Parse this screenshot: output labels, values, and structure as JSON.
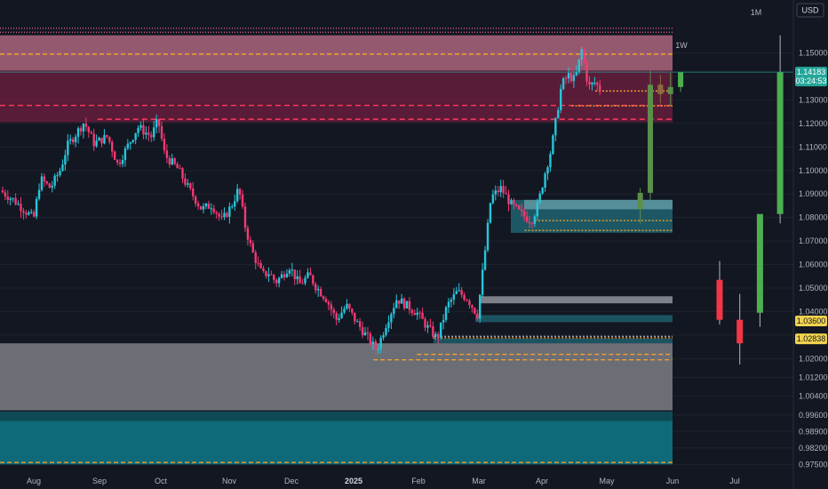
{
  "currency_label": "USD",
  "current_price": {
    "value": "1.14183",
    "countdown": "03:24:53",
    "color": "#26a69a"
  },
  "price_badges": [
    {
      "value": "1.03600",
      "price": 1.036,
      "color": "#f0d24e",
      "text_color": "#131722"
    },
    {
      "value": "1.02838",
      "price": 1.02838,
      "color": "#f0d24e",
      "text_color": "#131722"
    }
  ],
  "timeframe_labels": [
    {
      "label": "1W"
    },
    {
      "label": "1M"
    }
  ],
  "chart_data": {
    "type": "candlestick",
    "instrument": "EURUSD",
    "price_range": [
      0.972,
      1.162
    ],
    "y_ticks": [
      "1.15000",
      "1.14000",
      "1.13000",
      "1.12000",
      "1.11000",
      "1.10000",
      "1.09000",
      "1.08000",
      "1.07000",
      "1.06000",
      "1.05000",
      "1.04000",
      "1.03000",
      "1.02000",
      "1.01200",
      "1.00400",
      "0.99600",
      "0.98900",
      "0.98200",
      "0.97500"
    ],
    "y_tick_values": [
      1.15,
      1.14,
      1.13,
      1.12,
      1.11,
      1.1,
      1.09,
      1.08,
      1.07,
      1.06,
      1.05,
      1.04,
      1.03,
      1.02,
      1.012,
      1.004,
      0.996,
      0.989,
      0.982,
      0.975
    ],
    "x_ticks": [
      {
        "label": "Aug",
        "bold": false
      },
      {
        "label": "Sep",
        "bold": false
      },
      {
        "label": "Oct",
        "bold": false
      },
      {
        "label": "Nov",
        "bold": false
      },
      {
        "label": "Dec",
        "bold": false
      },
      {
        "label": "2025",
        "bold": true
      },
      {
        "label": "Feb",
        "bold": false
      },
      {
        "label": "Mar",
        "bold": false
      },
      {
        "label": "Apr",
        "bold": false
      },
      {
        "label": "May",
        "bold": false
      },
      {
        "label": "Jun",
        "bold": false
      },
      {
        "label": "Jul",
        "bold": false
      }
    ],
    "zones": [
      {
        "name": "supply-zone-upper",
        "low": 1.1425,
        "high": 1.1575,
        "color": "#c2708a",
        "opacity": 0.75
      },
      {
        "name": "supply-zone-lower",
        "low": 1.1205,
        "high": 1.1425,
        "color": "#801f45",
        "opacity": 0.65
      },
      {
        "name": "demand-zone-apr",
        "low": 1.0735,
        "high": 1.0875,
        "color": "#1f5e6b",
        "opacity": 0.9
      },
      {
        "name": "grey-zone-mar",
        "low": 1.0435,
        "high": 1.0465,
        "color": "#8a8c94",
        "opacity": 0.9
      },
      {
        "name": "demand-zone-mar",
        "low": 1.0355,
        "high": 1.0385,
        "color": "#1b5764",
        "opacity": 0.95
      },
      {
        "name": "demand-zone-feb",
        "low": 1.0265,
        "high": 1.0285,
        "color": "#1b5764",
        "opacity": 0.95
      },
      {
        "name": "grey-zone-jan",
        "low": 0.998,
        "high": 1.0265,
        "color": "#6c6e76",
        "opacity": 1
      },
      {
        "name": "teal-zone-bottom-dark",
        "low": 0.9935,
        "high": 0.9975,
        "color": "#0e4a55",
        "opacity": 1
      },
      {
        "name": "teal-zone-bottom",
        "low": 0.975,
        "high": 0.9935,
        "color": "#0e6a79",
        "opacity": 1
      }
    ],
    "levels": [
      {
        "price": 1.1605,
        "color": "#e8567a",
        "dash": "1,2",
        "x_from": 0,
        "x_to": 1
      },
      {
        "price": 1.1588,
        "color": "#e8567a",
        "dash": "1,2",
        "x_from": 0,
        "x_to": 1
      },
      {
        "price": 1.1495,
        "color": "#f0a030",
        "dash": "5,3",
        "x_from": 0,
        "x_to": 1
      },
      {
        "price": 1.1277,
        "color": "#ff3b5c",
        "dash": "6,4",
        "x_from": 0,
        "x_to": 1
      },
      {
        "price": 1.1218,
        "color": "#ff3b5c",
        "dash": "6,4",
        "x_from": 0.145,
        "x_to": 1
      },
      {
        "price": 1.1338,
        "color": "#f0a030",
        "dash": "2,2",
        "x_from": 0.885,
        "x_to": 1
      },
      {
        "price": 1.1275,
        "color": "#f0a030",
        "dash": "2,2",
        "x_from": 0.85,
        "x_to": 1
      },
      {
        "price": 1.0787,
        "color": "#f0a030",
        "dash": "2,2",
        "x_from": 0.795,
        "x_to": 1
      },
      {
        "price": 1.0745,
        "color": "#f0a030",
        "dash": "2,2",
        "x_from": 0.78,
        "x_to": 1
      },
      {
        "price": 1.0288,
        "color": "#f0a030",
        "dash": "2,2",
        "x_from": 0.645,
        "x_to": 1
      },
      {
        "price": 1.0218,
        "color": "#f0a030",
        "dash": "5,3",
        "x_from": 0.62,
        "x_to": 1
      },
      {
        "price": 1.0195,
        "color": "#f0a030",
        "dash": "5,3",
        "x_from": 0.555,
        "x_to": 1
      },
      {
        "price": 0.9758,
        "color": "#f0a030",
        "dash": "5,3",
        "x_from": 0,
        "x_to": 1
      }
    ],
    "daily_path": [
      [
        0,
        1.0915
      ],
      [
        0.02,
        1.0875
      ],
      [
        0.035,
        1.0835
      ],
      [
        0.05,
        1.0795
      ],
      [
        0.06,
        1.0965
      ],
      [
        0.075,
        1.0925
      ],
      [
        0.09,
        1.1005
      ],
      [
        0.1,
        1.1105
      ],
      [
        0.115,
        1.1165
      ],
      [
        0.125,
        1.1205
      ],
      [
        0.14,
        1.1115
      ],
      [
        0.16,
        1.1145
      ],
      [
        0.175,
        1.1025
      ],
      [
        0.19,
        1.1105
      ],
      [
        0.205,
        1.1185
      ],
      [
        0.225,
        1.1145
      ],
      [
        0.235,
        1.1215
      ],
      [
        0.245,
        1.1065
      ],
      [
        0.265,
        1.1005
      ],
      [
        0.28,
        1.0925
      ],
      [
        0.3,
        1.0835
      ],
      [
        0.315,
        1.0855
      ],
      [
        0.33,
        1.0785
      ],
      [
        0.345,
        1.0855
      ],
      [
        0.355,
        1.0925
      ],
      [
        0.365,
        1.0755
      ],
      [
        0.375,
        1.0655
      ],
      [
        0.39,
        1.0555
      ],
      [
        0.4,
        1.0565
      ],
      [
        0.41,
        1.0525
      ],
      [
        0.42,
        1.0555
      ],
      [
        0.43,
        1.0595
      ],
      [
        0.445,
        1.0515
      ],
      [
        0.46,
        1.0555
      ],
      [
        0.47,
        1.0505
      ],
      [
        0.485,
        1.0455
      ],
      [
        0.5,
        1.0365
      ],
      [
        0.515,
        1.0425
      ],
      [
        0.53,
        1.0355
      ],
      [
        0.545,
        1.0295
      ],
      [
        0.56,
        1.0235
      ],
      [
        0.575,
        1.0355
      ],
      [
        0.59,
        1.0455
      ],
      [
        0.605,
        1.0425
      ],
      [
        0.62,
        1.0395
      ],
      [
        0.635,
        1.0335
      ],
      [
        0.65,
        1.0285
      ],
      [
        0.665,
        1.0425
      ],
      [
        0.68,
        1.0485
      ],
      [
        0.695,
        1.0455
      ],
      [
        0.71,
        1.0385
      ],
      [
        0.72,
        1.0625
      ],
      [
        0.73,
        1.0885
      ],
      [
        0.745,
        1.0925
      ],
      [
        0.76,
        1.0855
      ],
      [
        0.775,
        1.0815
      ],
      [
        0.79,
        1.0785
      ],
      [
        0.8,
        1.0855
      ],
      [
        0.81,
        1.0985
      ],
      [
        0.82,
        1.1095
      ],
      [
        0.835,
        1.1365
      ],
      [
        0.845,
        1.1405
      ],
      [
        0.855,
        1.1385
      ],
      [
        0.865,
        1.1515
      ],
      [
        0.875,
        1.1355
      ],
      [
        0.885,
        1.1375
      ],
      [
        0.892,
        1.1345
      ]
    ],
    "weekly_candles": [
      {
        "t": 0.952,
        "open": 1.0835,
        "high": 1.0925,
        "low": 1.0775,
        "close": 1.0905
      },
      {
        "t": 0.967,
        "open": 1.0905,
        "high": 1.1425,
        "low": 1.0875,
        "close": 1.1365
      },
      {
        "t": 0.982,
        "open": 1.1365,
        "high": 1.1405,
        "low": 1.1285,
        "close": 1.1325
      },
      {
        "t": 0.997,
        "open": 1.1325,
        "high": 1.1415,
        "low": 1.1275,
        "close": 1.1355
      },
      {
        "t": 1.012,
        "open": 1.1355,
        "high": 1.1395,
        "low": 1.1335,
        "close": 1.1418
      }
    ],
    "monthly_candles": [
      {
        "t": 1.07,
        "open": 1.0535,
        "high": 1.0615,
        "low": 1.0345,
        "close": 1.0365
      },
      {
        "t": 1.1,
        "open": 1.0365,
        "high": 1.0475,
        "low": 1.0175,
        "close": 1.0265
      },
      {
        "t": 1.13,
        "open": 1.0395,
        "high": 1.0795,
        "low": 1.0335,
        "close": 1.0815
      },
      {
        "t": 1.16,
        "open": 1.0815,
        "high": 1.1575,
        "low": 1.0775,
        "close": 1.1418
      }
    ]
  }
}
